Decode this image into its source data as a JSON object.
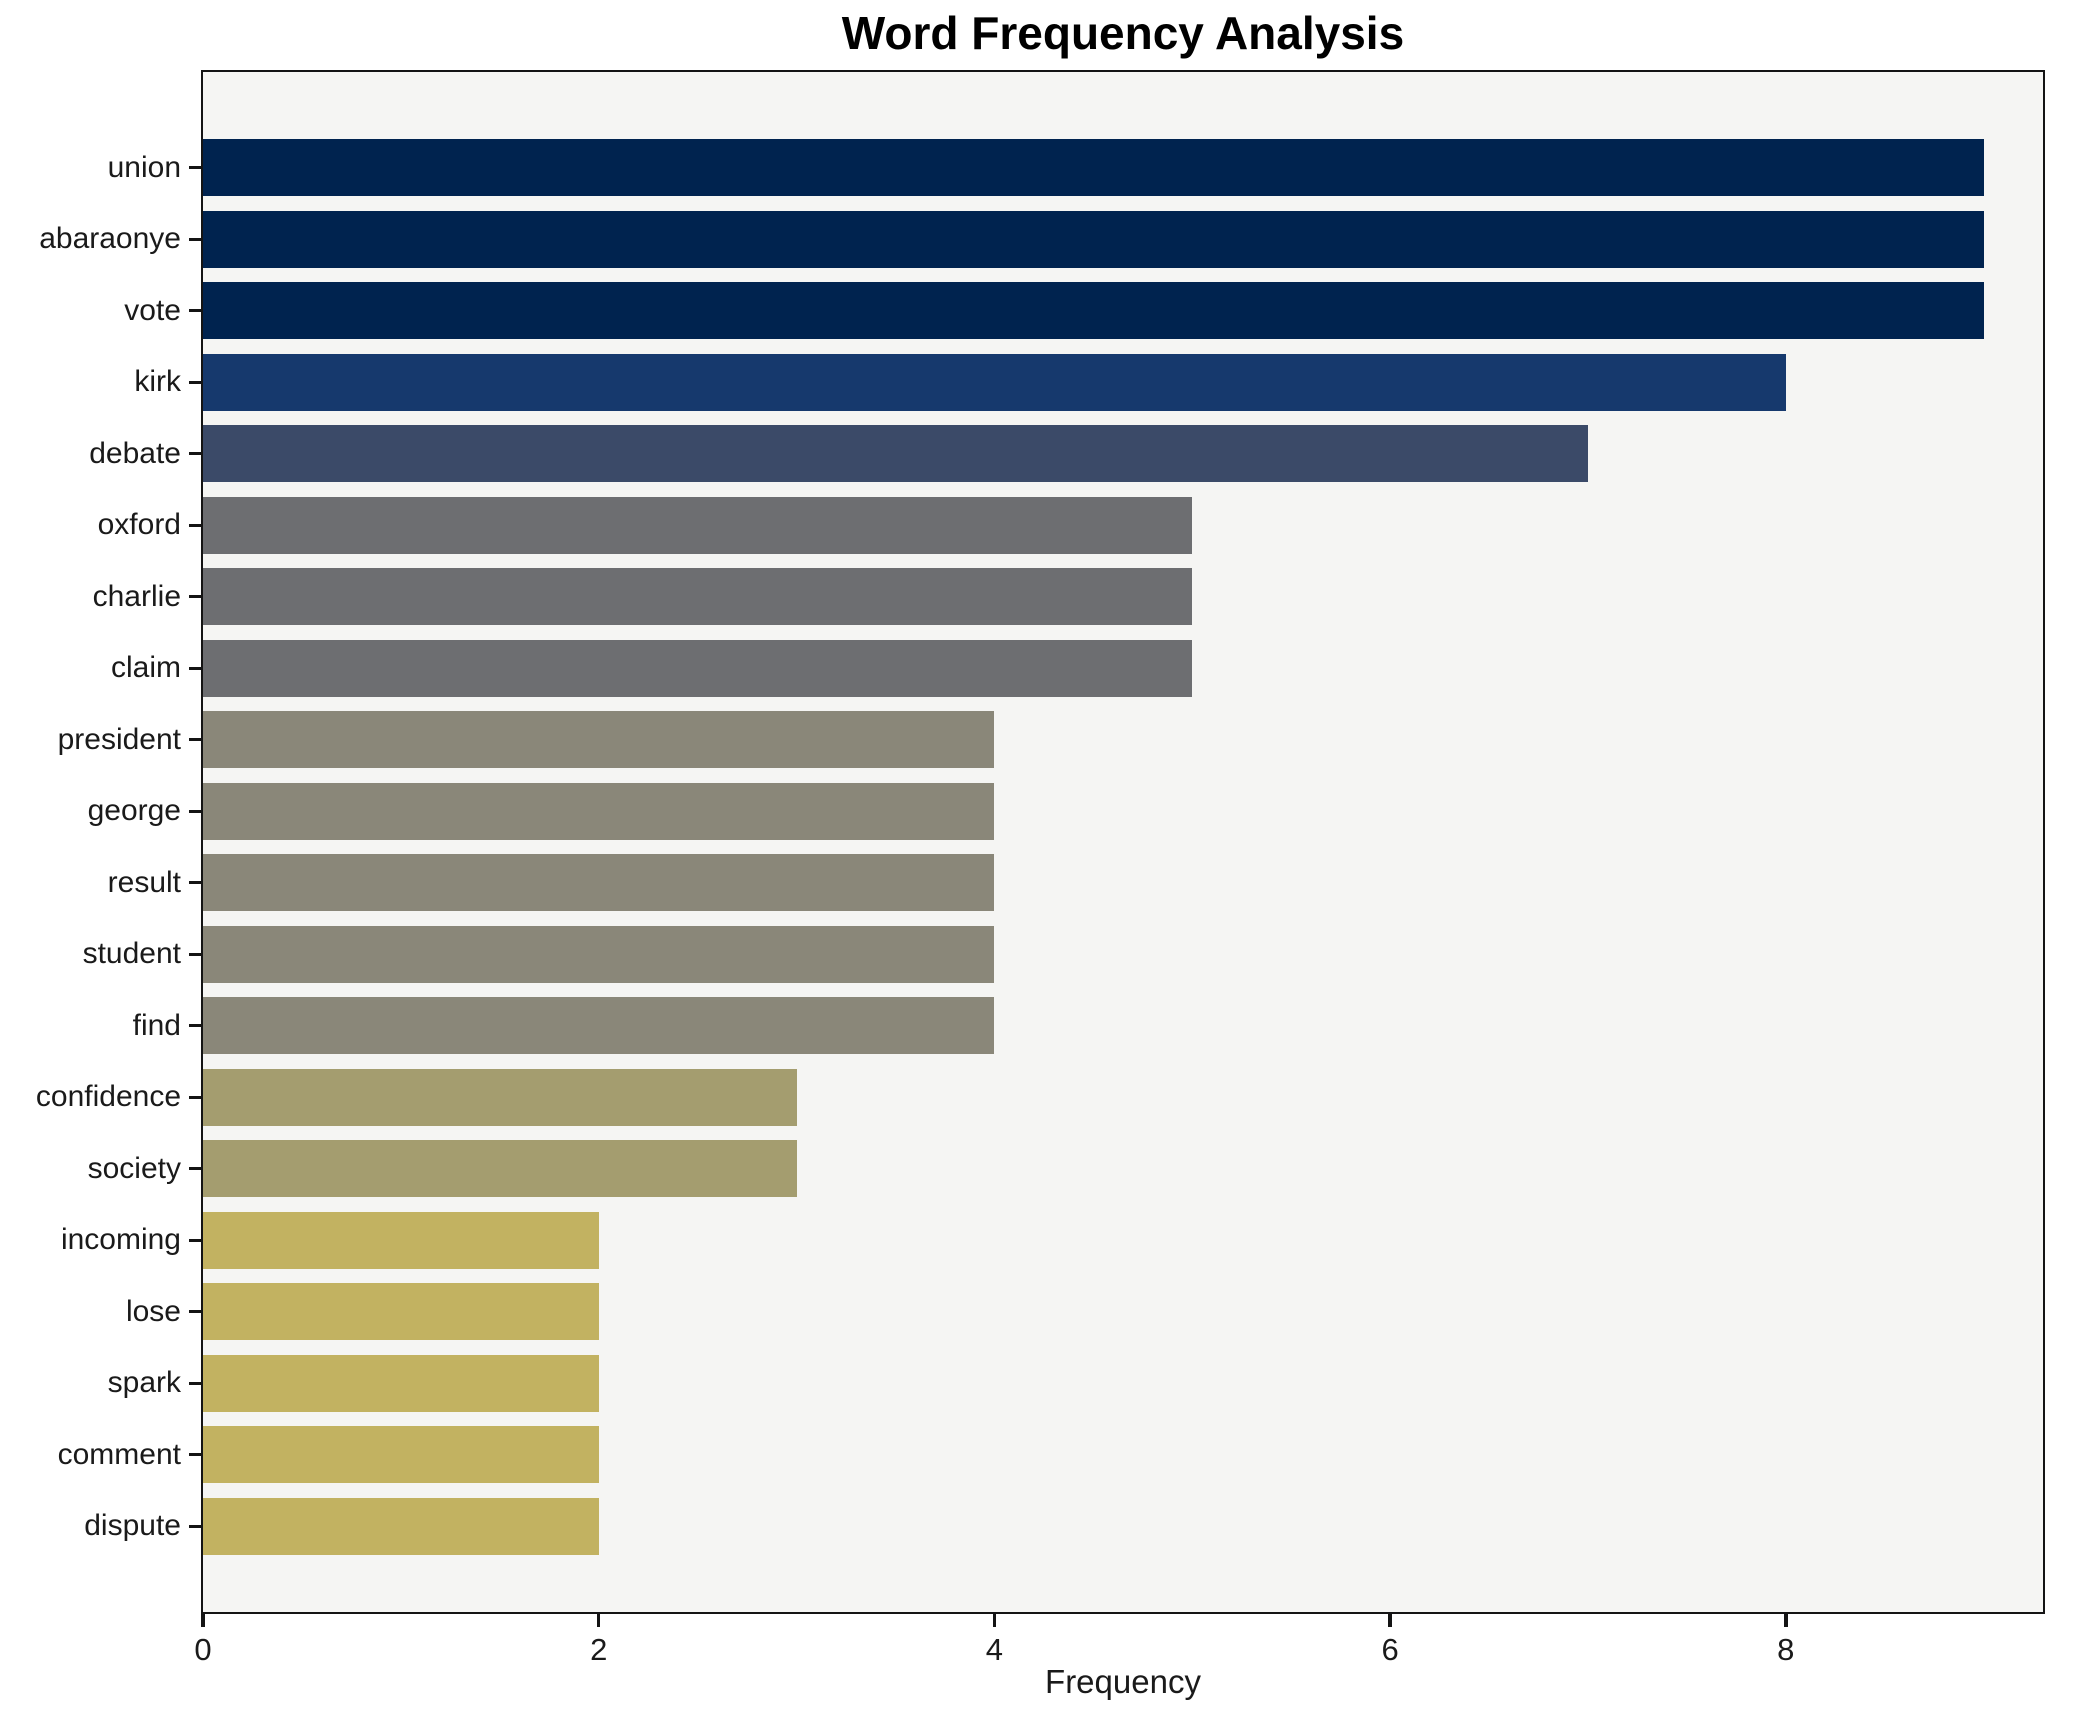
{
  "title": "Word Frequency Analysis",
  "chart_data": {
    "type": "bar",
    "orientation": "horizontal",
    "title": "Word Frequency Analysis",
    "xlabel": "Frequency",
    "ylabel": "",
    "categories": [
      "union",
      "abaraonye",
      "vote",
      "kirk",
      "debate",
      "oxford",
      "charlie",
      "claim",
      "president",
      "george",
      "result",
      "student",
      "find",
      "confidence",
      "society",
      "incoming",
      "lose",
      "spark",
      "comment",
      "dispute"
    ],
    "values": [
      9,
      9,
      9,
      8,
      7,
      5,
      5,
      5,
      4,
      4,
      4,
      4,
      4,
      3,
      3,
      2,
      2,
      2,
      2,
      2
    ],
    "bar_colors": [
      "#00234f",
      "#00234f",
      "#00234f",
      "#16396d",
      "#3b4a68",
      "#6d6e71",
      "#6d6e71",
      "#6d6e71",
      "#8a8779",
      "#8a8779",
      "#8a8779",
      "#8a8779",
      "#8a8779",
      "#a49d6f",
      "#a49d6f",
      "#c2b261",
      "#c2b261",
      "#c2b261",
      "#c2b261",
      "#c2b261"
    ],
    "xticks": [
      0,
      2,
      4,
      6,
      8
    ],
    "xtick_labels": [
      "0",
      "2",
      "4",
      "6",
      "8"
    ],
    "xlim": [
      0,
      9.3
    ],
    "grid": false,
    "legend_position": "none",
    "plot_background": "#f5f5f3",
    "figure_background": "#ffffff",
    "colormap": "cividis",
    "spine_color": "#141414"
  }
}
